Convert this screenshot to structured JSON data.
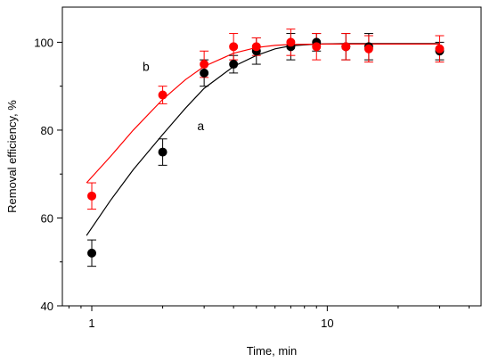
{
  "chart_data": {
    "type": "scatter",
    "xlabel": "Time, min",
    "ylabel": "Removal efficiency, %",
    "xscale": "log",
    "xlim": [
      0.75,
      45
    ],
    "ylim": [
      40,
      108
    ],
    "x_ticks": [
      1,
      10
    ],
    "x_tick_labels": [
      "1",
      "10"
    ],
    "y_ticks": [
      40,
      60,
      80,
      100
    ],
    "y_tick_labels": [
      "40",
      "60",
      "80",
      "100"
    ],
    "grid": false,
    "series": [
      {
        "name": "a",
        "color": "#000000",
        "points": [
          {
            "x": 1,
            "y": 52,
            "err": 3
          },
          {
            "x": 2,
            "y": 75,
            "err": 3
          },
          {
            "x": 3,
            "y": 93,
            "err": 3
          },
          {
            "x": 4,
            "y": 95,
            "err": 2
          },
          {
            "x": 5,
            "y": 98,
            "err": 3
          },
          {
            "x": 7,
            "y": 99,
            "err": 3
          },
          {
            "x": 9,
            "y": 100,
            "err": 2
          },
          {
            "x": 12,
            "y": 99,
            "err": 3
          },
          {
            "x": 15,
            "y": 99,
            "err": 3
          },
          {
            "x": 30,
            "y": 98,
            "err": 2
          }
        ],
        "fit": [
          {
            "x": 0.95,
            "y": 56
          },
          {
            "x": 1.2,
            "y": 64
          },
          {
            "x": 1.5,
            "y": 71
          },
          {
            "x": 2,
            "y": 79
          },
          {
            "x": 2.5,
            "y": 85
          },
          {
            "x": 3,
            "y": 89.5
          },
          {
            "x": 4,
            "y": 94.5
          },
          {
            "x": 5,
            "y": 97
          },
          {
            "x": 6,
            "y": 98.5
          },
          {
            "x": 7,
            "y": 99.2
          },
          {
            "x": 9,
            "y": 99.6
          },
          {
            "x": 12,
            "y": 99.7
          },
          {
            "x": 20,
            "y": 99.7
          },
          {
            "x": 30,
            "y": 99.7
          }
        ]
      },
      {
        "name": "b",
        "color": "#ff0000",
        "points": [
          {
            "x": 1,
            "y": 65,
            "err": 3
          },
          {
            "x": 2,
            "y": 88,
            "err": 2
          },
          {
            "x": 3,
            "y": 95,
            "err": 3
          },
          {
            "x": 4,
            "y": 99,
            "err": 3
          },
          {
            "x": 5,
            "y": 99,
            "err": 2
          },
          {
            "x": 7,
            "y": 100,
            "err": 3
          },
          {
            "x": 9,
            "y": 99,
            "err": 3
          },
          {
            "x": 12,
            "y": 99,
            "err": 3
          },
          {
            "x": 15,
            "y": 98.5,
            "err": 3
          },
          {
            "x": 30,
            "y": 98.5,
            "err": 3
          }
        ],
        "fit": [
          {
            "x": 0.95,
            "y": 68
          },
          {
            "x": 1.2,
            "y": 74
          },
          {
            "x": 1.5,
            "y": 80
          },
          {
            "x": 2,
            "y": 87
          },
          {
            "x": 2.5,
            "y": 91.5
          },
          {
            "x": 3,
            "y": 94.5
          },
          {
            "x": 4,
            "y": 97.5
          },
          {
            "x": 5,
            "y": 98.8
          },
          {
            "x": 6,
            "y": 99.3
          },
          {
            "x": 7,
            "y": 99.5
          },
          {
            "x": 10,
            "y": 99.6
          },
          {
            "x": 20,
            "y": 99.6
          },
          {
            "x": 30,
            "y": 99.6
          }
        ]
      }
    ],
    "annotations": [
      {
        "text": "a",
        "x": 2.9,
        "y": 80
      },
      {
        "text": "b",
        "x": 1.7,
        "y": 93.5
      }
    ]
  }
}
